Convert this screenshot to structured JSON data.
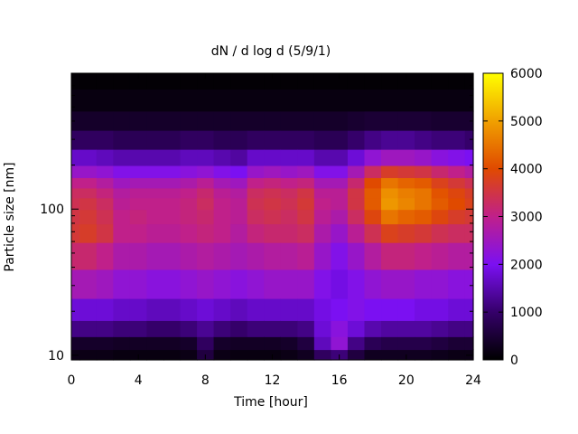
{
  "chart_data": {
    "type": "heatmap",
    "title": "dN / d log d (5/9/1)",
    "xlabel": "Time [hour]",
    "ylabel": "Particle size [nm]",
    "xlim": [
      0,
      24
    ],
    "x_ticks": [
      "0",
      "4",
      "8",
      "12",
      "16",
      "20",
      "24"
    ],
    "y_scale": "log",
    "ylim": [
      9.3,
      850
    ],
    "y_ticks": [
      "10",
      "100"
    ],
    "colorbar": {
      "range": [
        0,
        6000
      ],
      "ticks": [
        "0",
        "1000",
        "2000",
        "3000",
        "4000",
        "5000",
        "6000"
      ],
      "colors": [
        "#000000",
        "#35006a",
        "#7b10f2",
        "#c0208a",
        "#e04a00",
        "#f0a000",
        "#ffff00"
      ]
    },
    "time_hours": [
      0,
      1,
      2,
      3,
      4,
      5,
      6,
      7,
      8,
      9,
      10,
      11,
      12,
      13,
      14,
      15,
      16,
      17,
      18,
      19,
      20,
      21,
      22,
      23,
      24
    ],
    "size_nm": [
      10,
      12,
      15,
      20,
      30,
      50,
      70,
      90,
      110,
      130,
      150,
      180,
      220,
      300,
      400,
      550,
      800
    ],
    "values": [
      [
        200,
        400,
        1200,
        1800,
        2600,
        3200,
        3600,
        3500,
        3400,
        3300,
        3000,
        2400,
        1700,
        900,
        400,
        150,
        50
      ],
      [
        200,
        400,
        1200,
        1800,
        2600,
        3200,
        3700,
        3600,
        3500,
        3300,
        3000,
        2400,
        1700,
        900,
        400,
        150,
        50
      ],
      [
        200,
        400,
        1200,
        1800,
        2500,
        3000,
        3500,
        3400,
        3300,
        3100,
        2800,
        2300,
        1600,
        900,
        400,
        150,
        50
      ],
      [
        150,
        350,
        1100,
        1700,
        2300,
        2700,
        3000,
        3000,
        2900,
        2800,
        2500,
        2100,
        1500,
        800,
        400,
        150,
        50
      ],
      [
        150,
        350,
        1100,
        1700,
        2300,
        2700,
        3000,
        3100,
        3000,
        2900,
        2600,
        2100,
        1500,
        800,
        400,
        150,
        50
      ],
      [
        150,
        350,
        1000,
        1600,
        2200,
        2600,
        2900,
        3000,
        3000,
        2900,
        2600,
        2100,
        1500,
        800,
        400,
        150,
        50
      ],
      [
        150,
        350,
        1000,
        1600,
        2200,
        2600,
        2900,
        3000,
        3000,
        2900,
        2600,
        2100,
        1500,
        800,
        400,
        150,
        50
      ],
      [
        200,
        400,
        1100,
        1700,
        2300,
        2700,
        3000,
        3100,
        3100,
        3000,
        2700,
        2200,
        1600,
        900,
        400,
        150,
        50
      ],
      [
        600,
        900,
        1300,
        1800,
        2400,
        2800,
        3100,
        3200,
        3300,
        3200,
        2900,
        2300,
        1600,
        900,
        400,
        150,
        50
      ],
      [
        200,
        400,
        1100,
        1700,
        2300,
        2700,
        3000,
        3000,
        3000,
        2900,
        2600,
        2100,
        1500,
        800,
        400,
        150,
        50
      ],
      [
        150,
        350,
        1000,
        1600,
        2200,
        2600,
        2800,
        2900,
        2900,
        2800,
        2500,
        2000,
        1400,
        800,
        400,
        150,
        50
      ],
      [
        150,
        350,
        1100,
        1700,
        2300,
        2700,
        3100,
        3300,
        3400,
        3300,
        3000,
        2400,
        1700,
        900,
        400,
        150,
        50
      ],
      [
        150,
        350,
        1100,
        1700,
        2400,
        2800,
        3200,
        3400,
        3500,
        3400,
        3100,
        2500,
        1700,
        900,
        400,
        150,
        50
      ],
      [
        200,
        400,
        1100,
        1700,
        2400,
        2800,
        3200,
        3300,
        3400,
        3300,
        3000,
        2400,
        1700,
        900,
        400,
        150,
        50
      ],
      [
        300,
        600,
        1200,
        1700,
        2400,
        2900,
        3300,
        3500,
        3600,
        3500,
        3100,
        2500,
        1700,
        900,
        400,
        150,
        50
      ],
      [
        900,
        1600,
        1800,
        1900,
        2100,
        2400,
        2700,
        2900,
        3000,
        2900,
        2600,
        2100,
        1500,
        800,
        400,
        150,
        50
      ],
      [
        1100,
        2300,
        2200,
        2000,
        1900,
        2100,
        2400,
        2700,
        2900,
        2900,
        2600,
        2100,
        1500,
        800,
        400,
        150,
        50
      ],
      [
        600,
        1200,
        1800,
        2100,
        2100,
        2400,
        2900,
        3300,
        3500,
        3500,
        3200,
        2600,
        1800,
        1000,
        450,
        150,
        50
      ],
      [
        300,
        800,
        1500,
        2000,
        2300,
        2800,
        3400,
        3900,
        4200,
        4200,
        4000,
        3300,
        2300,
        1200,
        500,
        150,
        50
      ],
      [
        300,
        700,
        1400,
        2000,
        2400,
        3100,
        3800,
        4500,
        4900,
        4800,
        4500,
        3700,
        2500,
        1300,
        500,
        150,
        50
      ],
      [
        300,
        700,
        1400,
        2000,
        2400,
        3100,
        3700,
        4300,
        4700,
        4600,
        4300,
        3600,
        2500,
        1300,
        500,
        150,
        50
      ],
      [
        300,
        700,
        1400,
        1900,
        2300,
        3000,
        3600,
        4200,
        4500,
        4500,
        4200,
        3500,
        2400,
        1200,
        500,
        150,
        50
      ],
      [
        250,
        600,
        1300,
        1900,
        2300,
        2900,
        3400,
        3900,
        4200,
        4100,
        3800,
        3200,
        2200,
        1100,
        450,
        150,
        50
      ],
      [
        200,
        500,
        1200,
        1800,
        2200,
        2800,
        3300,
        3700,
        4000,
        3900,
        3600,
        3000,
        2100,
        1100,
        450,
        150,
        50
      ],
      [
        200,
        500,
        1200,
        1800,
        2200,
        2800,
        3300,
        3600,
        3800,
        3700,
        3400,
        2800,
        2000,
        1000,
        450,
        150,
        50
      ]
    ]
  }
}
